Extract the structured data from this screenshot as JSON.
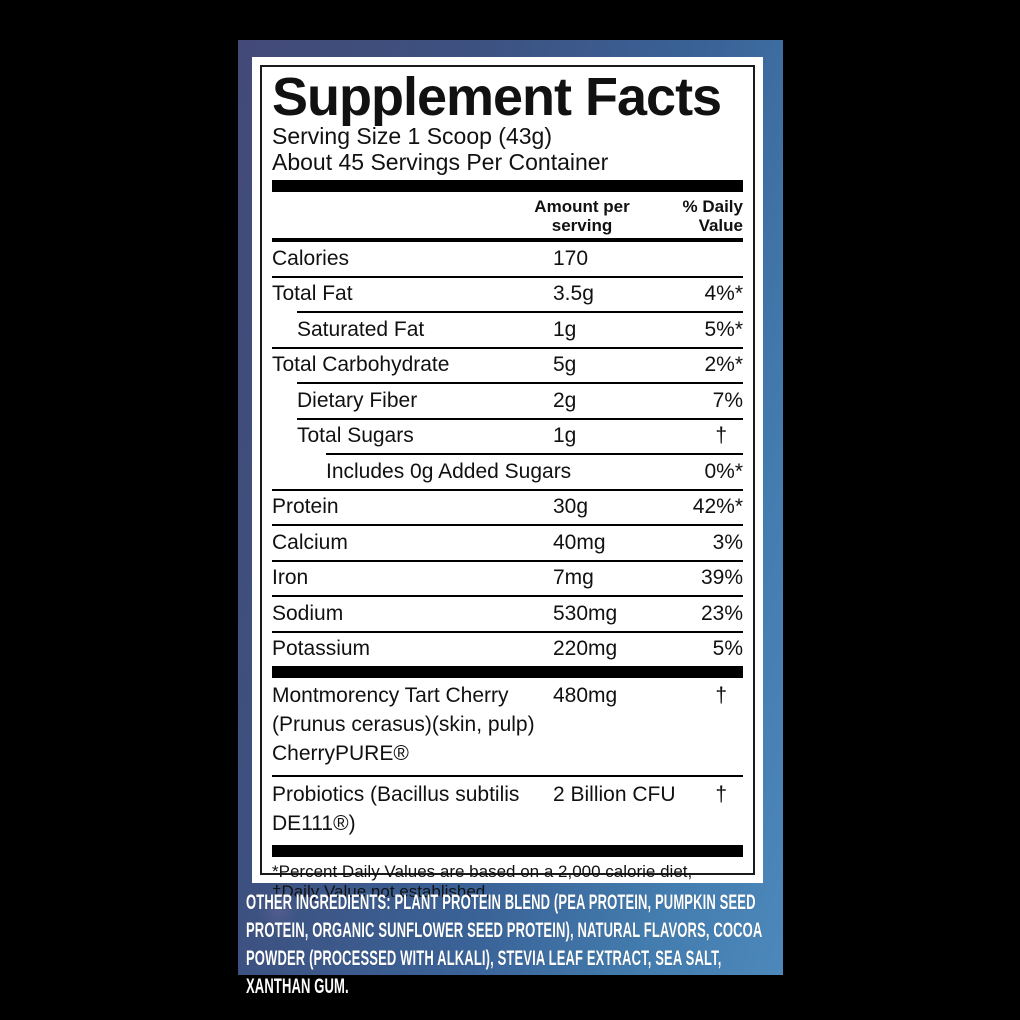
{
  "colors": {
    "backdrop": "#000000",
    "pouch_blue_dark": "#434a78",
    "pouch_blue_light": "#4d88ba",
    "panel_bg": "#ffffff",
    "panel_text": "#111111",
    "ingredients_text": "#ffffff"
  },
  "panel": {
    "title": "Supplement Facts",
    "serving_size": "Serving Size 1 Scoop (43g)",
    "servings_per_container": "About 45 Servings Per Container",
    "col_amount_header": "Amount per serving",
    "col_dv_header": "% Daily Value"
  },
  "facts": {
    "rows": [
      {
        "label": "Calories",
        "amount": "170",
        "dv": ""
      },
      {
        "label": "Total Fat",
        "amount": "3.5g",
        "dv": "4%*"
      },
      {
        "label": "Saturated Fat",
        "amount": "1g",
        "dv": "5%*"
      },
      {
        "label": "Total Carbohydrate",
        "amount": "5g",
        "dv": "2%*"
      },
      {
        "label": "Dietary Fiber",
        "amount": "2g",
        "dv": "7%"
      },
      {
        "label": "Total Sugars",
        "amount": "1g",
        "dv": "†"
      },
      {
        "label": "Includes 0g Added Sugars",
        "amount": "",
        "dv": "0%*"
      },
      {
        "label": "Protein",
        "amount": "30g",
        "dv": "42%*"
      },
      {
        "label": "Calcium",
        "amount": "40mg",
        "dv": "3%"
      },
      {
        "label": "Iron",
        "amount": "7mg",
        "dv": "39%"
      },
      {
        "label": "Sodium",
        "amount": "530mg",
        "dv": "23%"
      },
      {
        "label": "Potassium",
        "amount": "220mg",
        "dv": "5%"
      },
      {
        "label": "Montmorency Tart Cherry (Prunus cerasus)(skin, pulp) CherryPURE®",
        "amount": "480mg",
        "dv": "†"
      },
      {
        "label": "Probiotics (Bacillus subtilis DE111®)",
        "amount": "2 Billion CFU",
        "dv": "†"
      }
    ],
    "footnote_1": "*Percent Daily Values are based on a 2,000 calorie diet,",
    "footnote_2": "†Daily Value not established,"
  },
  "ingredients": {
    "text": "OTHER INGREDIENTS: PLANT PROTEIN BLEND (PEA PROTEIN, PUMPKIN SEED PROTEIN, ORGANIC SUNFLOWER SEED PROTEIN), NATURAL FLAVORS, COCOA POWDER (PROCESSED WITH ALKALI), STEVIA LEAF EXTRACT, SEA SALT, XANTHAN GUM."
  }
}
